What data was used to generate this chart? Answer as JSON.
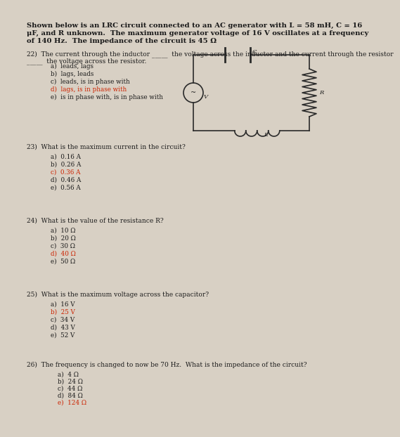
{
  "bg_color": "#d8d0c4",
  "paper_color": "#e8e4dc",
  "text_color": "#1a1a1a",
  "red_color": "#cc2200",
  "title_text1": "Shown below is an LRC circuit connected to an AC generator with L = 58 mH, C = 16",
  "title_text2": "μF, and R unknown.  The maximum generator voltage of 16 V oscillates at a frequency",
  "title_text3": "of 140 Hz.  The impedance of the circuit is 45 Ω",
  "q22_line1": "22)  The current through the inductor _____  the voltage across the inductor and the current through the resistor",
  "q22_line2": "_____  the voltage across the resistor.",
  "q22_options": [
    [
      "a)  leads, lags",
      false
    ],
    [
      "b)  lags, leads",
      false
    ],
    [
      "c)  leads, is in phase with",
      false
    ],
    [
      "d)  lags, is in phase with",
      true
    ],
    [
      "e)  is in phase with, is in phase with",
      false
    ]
  ],
  "q23_text": "23)  What is the maximum current in the circuit?",
  "q23_options": [
    [
      "a)  0.16 A",
      false
    ],
    [
      "b)  0.26 A",
      false
    ],
    [
      "c)  0.36 A",
      true
    ],
    [
      "d)  0.46 A",
      false
    ],
    [
      "e)  0.56 A",
      false
    ]
  ],
  "q24_text": "24)  What is the value of the resistance R?",
  "q24_options": [
    [
      "a)  10 Ω",
      false
    ],
    [
      "b)  20 Ω",
      false
    ],
    [
      "c)  30 Ω",
      false
    ],
    [
      "d)  40 Ω",
      true
    ],
    [
      "e)  50 Ω",
      false
    ]
  ],
  "q25_text": "25)  What is the maximum voltage across the capacitor?",
  "q25_options": [
    [
      "a)  16 V",
      false
    ],
    [
      "b)  25 V",
      true
    ],
    [
      "c)  34 V",
      false
    ],
    [
      "d)  43 V",
      false
    ],
    [
      "e)  52 V",
      false
    ]
  ],
  "q26_text": "26)  The frequency is changed to now be 70 Hz.  What is the impedance of the circuit?",
  "q26_options": [
    [
      "a)  4 Ω",
      false
    ],
    [
      "b)  24 Ω",
      false
    ],
    [
      "c)  44 Ω",
      false
    ],
    [
      "d)  84 Ω",
      false
    ],
    [
      "e)  124 Ω",
      true
    ]
  ]
}
